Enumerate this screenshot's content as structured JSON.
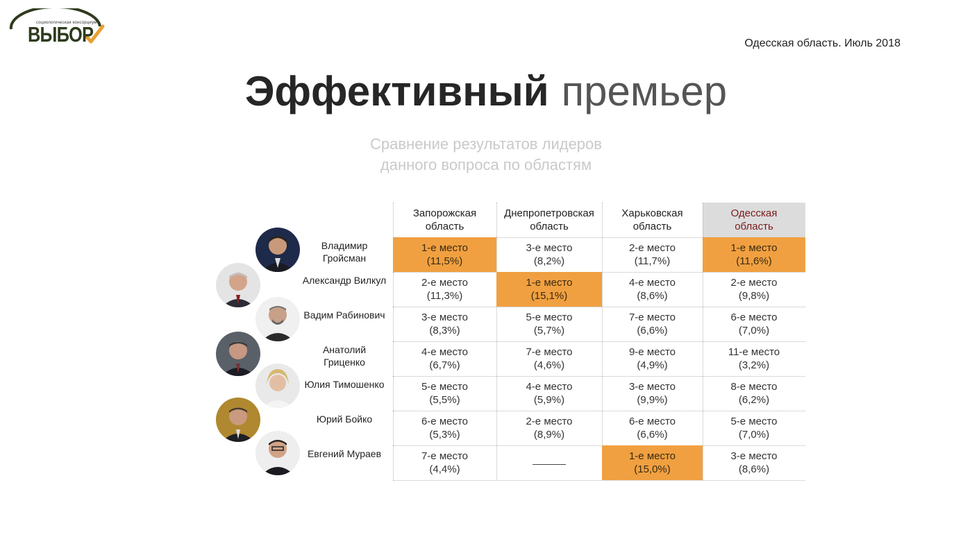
{
  "logo": {
    "small_text": "социологическая консорциум",
    "word": "ВЫБОР"
  },
  "header": {
    "region_date": "Одесская область. Июль 2018"
  },
  "title": {
    "bold": "Эффективный",
    "light": "премьер"
  },
  "subtitle": {
    "line1": "Сравнение результатов лидеров",
    "line2": "данного вопроса по областям"
  },
  "table": {
    "columns": [
      {
        "line1": "Запорожская",
        "line2": "область"
      },
      {
        "line1": "Днепропетровская",
        "line2": "область"
      },
      {
        "line1": "Харьковская",
        "line2": "область"
      },
      {
        "line1": "Одесская",
        "line2": "область"
      }
    ],
    "rows": [
      {
        "name1": "Владимир",
        "name2": "Гройсман",
        "cells": [
          {
            "place": "1-е место",
            "pct": "(11,5%)"
          },
          {
            "place": "3-е место",
            "pct": "(8,2%)"
          },
          {
            "place": "2-е место",
            "pct": "(11,7%)"
          },
          {
            "place": "1-е место",
            "pct": "(11,6%)"
          }
        ]
      },
      {
        "name1": "Александр Вилкул",
        "name2": "",
        "cells": [
          {
            "place": "2-е место",
            "pct": "(11,3%)"
          },
          {
            "place": "1-е место",
            "pct": "(15,1%)"
          },
          {
            "place": "4-е место",
            "pct": "(8,6%)"
          },
          {
            "place": "2-е место",
            "pct": "(9,8%)"
          }
        ]
      },
      {
        "name1": "Вадим Рабинович",
        "name2": "",
        "cells": [
          {
            "place": "3-е место",
            "pct": "(8,3%)"
          },
          {
            "place": "5-е место",
            "pct": "(5,7%)"
          },
          {
            "place": "7-е место",
            "pct": "(6,6%)"
          },
          {
            "place": "6-е место",
            "pct": "(7,0%)"
          }
        ]
      },
      {
        "name1": "Анатолий",
        "name2": "Гриценко",
        "cells": [
          {
            "place": "4-е место",
            "pct": "(6,7%)"
          },
          {
            "place": "7-е место",
            "pct": "(4,6%)"
          },
          {
            "place": "9-е место",
            "pct": "(4,9%)"
          },
          {
            "place": "11-е место",
            "pct": "(3,2%)"
          }
        ]
      },
      {
        "name1": "Юлия Тимошенко",
        "name2": "",
        "cells": [
          {
            "place": "5-е место",
            "pct": "(5,5%)"
          },
          {
            "place": "4-е место",
            "pct": "(5,9%)"
          },
          {
            "place": "3-е место",
            "pct": "(9,9%)"
          },
          {
            "place": "8-е место",
            "pct": "(6,2%)"
          }
        ]
      },
      {
        "name1": "Юрий Бойко",
        "name2": "",
        "cells": [
          {
            "place": "6-е место",
            "pct": "(5,3%)"
          },
          {
            "place": "2-е место",
            "pct": "(8,9%)"
          },
          {
            "place": "6-е место",
            "pct": "(6,6%)"
          },
          {
            "place": "5-е место",
            "pct": "(7,0%)"
          }
        ]
      },
      {
        "name1": "Евгений Мураев",
        "name2": "",
        "cells": [
          {
            "place": "7-е место",
            "pct": "(4,4%)"
          },
          {
            "place": "",
            "pct": ""
          },
          {
            "place": "1-е место",
            "pct": "(15,0%)"
          },
          {
            "place": "3-е место",
            "pct": "(8,6%)"
          }
        ]
      }
    ]
  },
  "colors": {
    "highlight_orange": "#f0a040",
    "highlight_header": "#dcdcdc",
    "highlight_header_text": "#7a1c1c",
    "logo_green": "#2e3b1d",
    "logo_check": "#e8a030"
  }
}
